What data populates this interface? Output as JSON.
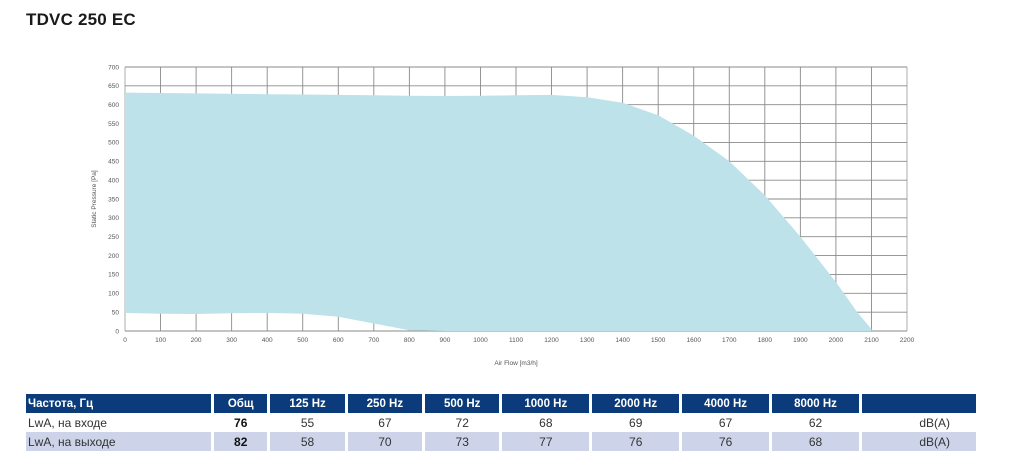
{
  "title": "TDVC 250 EC",
  "chart_data": {
    "type": "area",
    "xlabel": "Air Flow [m3/h]",
    "ylabel": "Static Pressure [Pa]",
    "xlim": [
      0,
      2200
    ],
    "ylim": [
      0,
      700
    ],
    "xticks": [
      0,
      100,
      200,
      300,
      400,
      500,
      600,
      700,
      800,
      900,
      1000,
      1100,
      1200,
      1300,
      1400,
      1500,
      1600,
      1700,
      1800,
      1900,
      2000,
      2100,
      2200
    ],
    "yticks": [
      0,
      50,
      100,
      150,
      200,
      250,
      300,
      350,
      400,
      450,
      500,
      550,
      600,
      650,
      700
    ],
    "grid": true,
    "fill_color": "#bde2ea",
    "upper_curve": {
      "x": [
        0,
        100,
        200,
        300,
        400,
        500,
        600,
        700,
        800,
        900,
        1000,
        1100,
        1200,
        1300,
        1400,
        1500,
        1600,
        1700,
        1800,
        1900,
        2000,
        2060,
        2100
      ],
      "y": [
        632,
        631,
        630,
        629,
        628,
        627,
        626,
        625,
        624,
        623,
        624,
        625,
        626,
        620,
        605,
        572,
        518,
        450,
        360,
        250,
        130,
        50,
        5
      ]
    },
    "lower_curve": {
      "x": [
        0,
        100,
        200,
        300,
        400,
        500,
        600,
        700,
        800,
        900,
        1000,
        1100,
        1200,
        1300,
        1400,
        1500,
        1600,
        1700,
        1800,
        1900,
        2000,
        2100
      ],
      "y": [
        48,
        46,
        45,
        47,
        48,
        46,
        38,
        20,
        2,
        0,
        0,
        0,
        0,
        0,
        0,
        0,
        0,
        0,
        0,
        0,
        0,
        0
      ]
    }
  },
  "table": {
    "headers": [
      "Частота, Гц",
      "Общ",
      "125 Hz",
      "250 Hz",
      "500 Hz",
      "1000 Hz",
      "2000 Hz",
      "4000 Hz",
      "8000 Hz",
      ""
    ],
    "rows": [
      {
        "label": "LwA, на входе",
        "total": "76",
        "values": [
          "55",
          "67",
          "72",
          "68",
          "69",
          "67",
          "62"
        ],
        "unit": "dB(A)"
      },
      {
        "label": "LwA, на выходе",
        "total": "82",
        "values": [
          "58",
          "70",
          "73",
          "77",
          "76",
          "76",
          "68"
        ],
        "unit": "dB(A)"
      }
    ]
  }
}
